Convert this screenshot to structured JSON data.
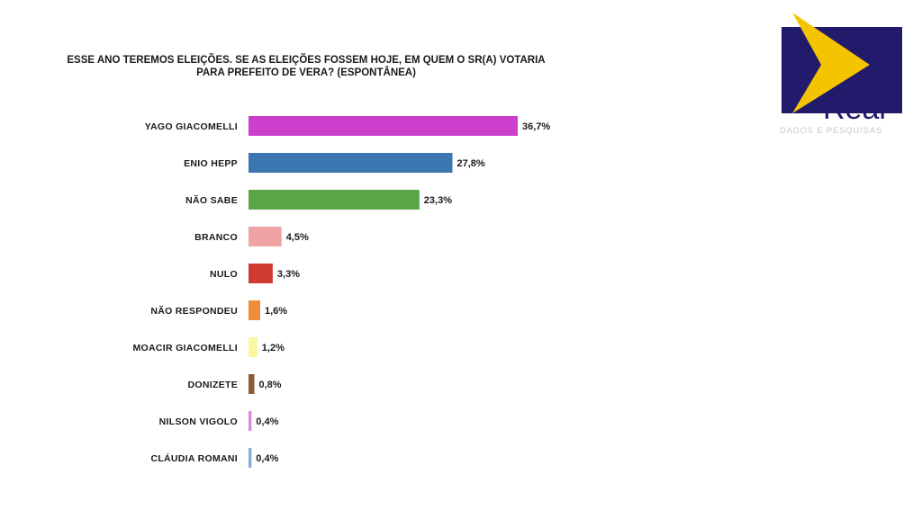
{
  "chart_data": {
    "type": "bar",
    "orientation": "horizontal",
    "title_lines": [
      "ESSE ANO TEREMOS ELEIÇÕES. SE AS ELEIÇÕES FOSSEM HOJE, EM QUEM O SR(A) VOTARIA",
      "PARA PREFEITO DE VERA? (ESPONTÂNEA)"
    ],
    "categories": [
      "YAGO GIACOMELLI",
      "ENIO HEPP",
      "NÃO SABE",
      "BRANCO",
      "NULO",
      "NÃO RESPONDEU",
      "MOACIR GIACOMELLI",
      "DONIZETE",
      "NILSON VIGOLO",
      "CLÁUDIA ROMANI"
    ],
    "values": [
      36.7,
      27.8,
      23.3,
      4.5,
      3.3,
      1.6,
      1.2,
      0.8,
      0.4,
      0.4
    ],
    "value_labels": [
      "36,7%",
      "27,8%",
      "23,3%",
      "4,5%",
      "3,3%",
      "1,6%",
      "1,2%",
      "0,8%",
      "0,4%",
      "0,4%"
    ],
    "colors": [
      "#cc3fcc",
      "#3b76b0",
      "#5aa548",
      "#f0a3a3",
      "#d13a32",
      "#f08c3a",
      "#fbf7a0",
      "#8b5a3a",
      "#dd88dd",
      "#88aadd"
    ],
    "xlim": [
      0,
      36.7
    ],
    "grid": false,
    "legend": "none"
  },
  "logo": {
    "brand": "Real",
    "tagline": "DADOS E PESQUISAS",
    "colors": {
      "navy": "#221a6b",
      "yellow": "#f5c400"
    }
  }
}
